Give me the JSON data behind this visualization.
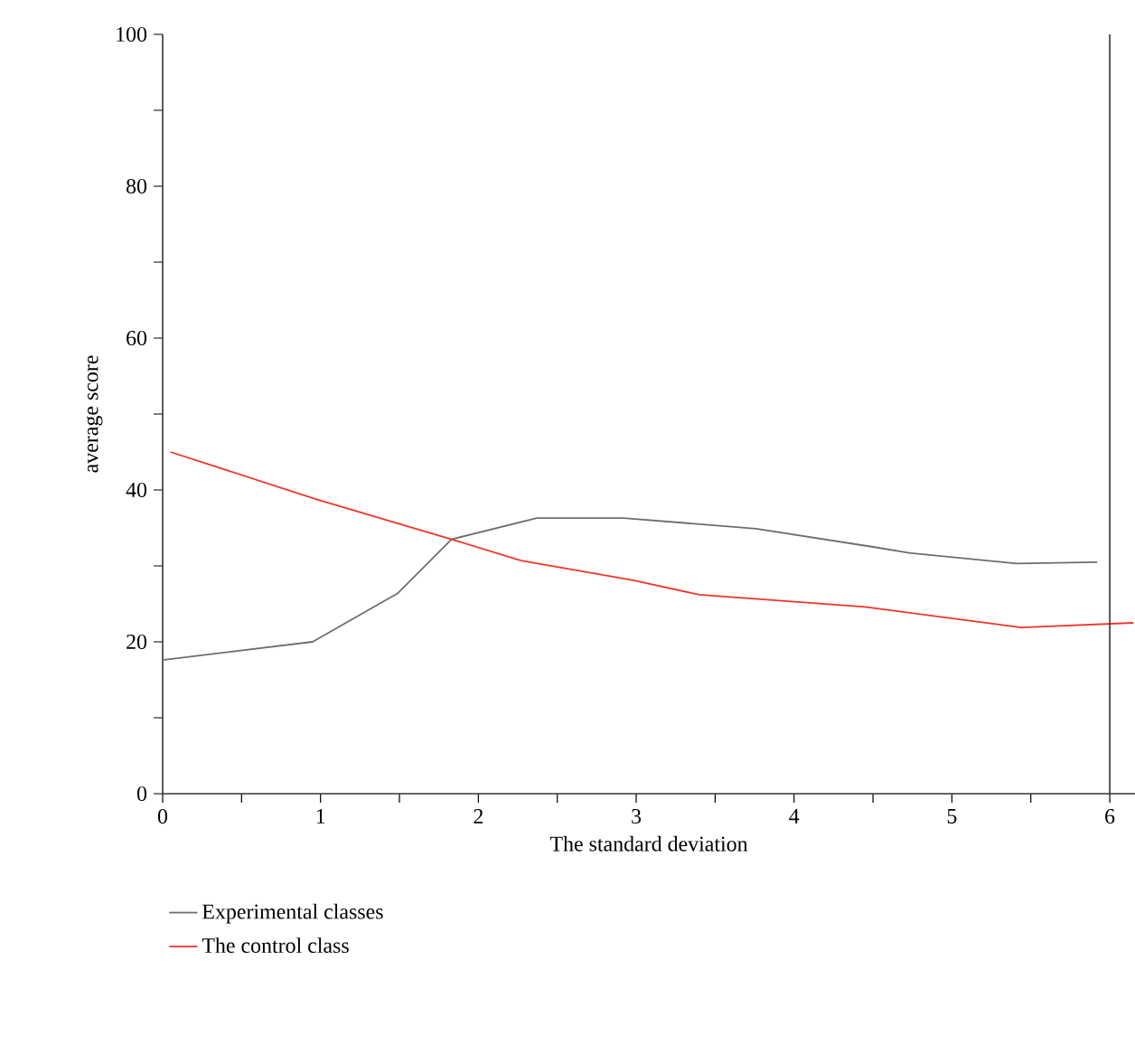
{
  "chart_data": {
    "type": "line",
    "xlabel": "The standard deviation",
    "ylabel": "average score",
    "xlim": [
      0,
      6.16
    ],
    "xticks": [
      0,
      {
        "value": 0.5,
        "label": null
      },
      1,
      {
        "value": 1.5,
        "label": null
      },
      2,
      {
        "value": 2.5,
        "label": null
      },
      3,
      {
        "value": 3.5,
        "label": null
      },
      4,
      {
        "value": 4.5,
        "label": null
      },
      5,
      {
        "value": 5.5,
        "label": null
      },
      6
    ],
    "ylim": [
      0,
      100
    ],
    "yticks": [
      0,
      {
        "value": 10,
        "label": null
      },
      20,
      {
        "value": 30,
        "label": null
      },
      40,
      {
        "value": 50,
        "label": null
      },
      60,
      {
        "value": 70,
        "label": null
      },
      80,
      {
        "value": 90,
        "label": null
      },
      100
    ],
    "grid": false,
    "legend": "bottom",
    "marker": "none",
    "line_style": "solid",
    "ref_lines": [
      {
        "axis": "x",
        "value": 6,
        "color": "#333333"
      }
    ],
    "series": [
      {
        "name": "Experimental classes",
        "color": "#6d6d6d",
        "x": [
          0,
          0.95,
          1.49,
          1.83,
          2.37,
          2.92,
          3.76,
          4.5,
          4.73,
          5.41,
          5.92
        ],
        "values": [
          17.6,
          20.0,
          26.4,
          33.5,
          36.3,
          36.3,
          34.9,
          32.5,
          31.7,
          30.3,
          30.5
        ]
      },
      {
        "name": "The control class",
        "color": "#f0352a",
        "x": [
          0.05,
          0.97,
          1.83,
          2.27,
          2.98,
          3.4,
          4.45,
          5.44,
          6.15
        ],
        "values": [
          45.0,
          38.8,
          33.5,
          30.7,
          28.1,
          26.2,
          24.6,
          21.9,
          22.5
        ]
      }
    ]
  }
}
